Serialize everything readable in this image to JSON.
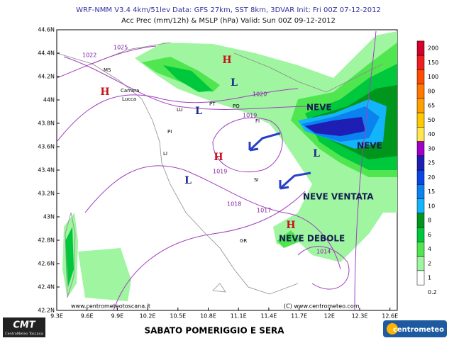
{
  "header": {
    "line1": "WRF-NMM V3.4 4km/51lev  Data: GFS 27km, SST 8km, 3DVAR  Init: Fri 00Z 07-12-2012",
    "line2": "Acc Prec (mm/12h) & MSLP (hPa)  Valid: Sun 00Z 09-12-2012"
  },
  "map": {
    "lat_labels": [
      "44.6N",
      "44.4N",
      "44.2N",
      "44N",
      "43.8N",
      "43.6N",
      "43.4N",
      "43.2N",
      "43N",
      "42.8N",
      "42.6N",
      "42.4N",
      "42.2N"
    ],
    "lon_labels": [
      "9.3E",
      "9.6E",
      "9.9E",
      "10.2E",
      "10.5E",
      "10.8E",
      "11.1E",
      "11.4E",
      "11.7E",
      "12E",
      "12.3E",
      "12.6E"
    ],
    "cities": [
      "MS",
      "Carrara",
      "Lucca",
      "LU",
      "PT",
      "PO",
      "FI",
      "PI",
      "LI",
      "SI",
      "GR"
    ],
    "isobar_labels": [
      "1022",
      "1025",
      "1020",
      "1019",
      "1019",
      "1018",
      "1017",
      "1014"
    ],
    "highs": [
      "H",
      "H",
      "H",
      "H"
    ],
    "lows": [
      "L",
      "L",
      "L",
      "L"
    ],
    "annotations": [
      "NEVE",
      "NEVE",
      "NEVE VENTATA",
      "NEVE DEBOLE"
    ],
    "watermarks": [
      "www.centrometeotoscana.it",
      "(C) www.centrometeo.com"
    ]
  },
  "colorbar": {
    "levels": [
      200,
      150,
      100,
      80,
      65,
      50,
      40,
      30,
      25,
      20,
      15,
      10,
      8,
      6,
      4,
      2,
      1,
      0.2
    ],
    "colors": [
      "#d2002a",
      "#f01e1e",
      "#ff4b00",
      "#ff7800",
      "#ffa000",
      "#ffc800",
      "#ffe650",
      "#a000c8",
      "#1e1eb4",
      "#0a46e6",
      "#0a82f0",
      "#14b4fa",
      "#00961e",
      "#00c83c",
      "#50e650",
      "#a0f5a0",
      "#ffffff"
    ]
  },
  "footer": {
    "caption": "SABATO POMERIGGIO E SERA",
    "logo_left": "CMT",
    "logo_left_sub": "CentroMeteo Toscana",
    "logo_right": "centrometeo"
  }
}
